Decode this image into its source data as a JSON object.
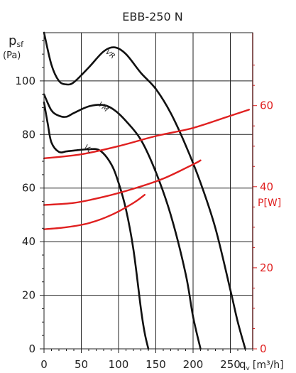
{
  "chart_data": {
    "type": "line",
    "title": "EBB-250 N",
    "ylabel": "p",
    "ylabel_sub": "sf",
    "yunit": "(Pa)",
    "xlabel": "q",
    "xlabel_sub": "v",
    "xunit": "[m³/h]",
    "y2label": "P[W]",
    "xlim": [
      0,
      280
    ],
    "ylim": [
      0,
      118
    ],
    "y2lim": [
      0,
      78
    ],
    "grid": true,
    "x_ticks": [
      0,
      50,
      100,
      150,
      200,
      250
    ],
    "y_ticks": [
      0,
      20,
      40,
      60,
      80,
      100
    ],
    "y2_ticks": [
      0,
      20,
      40,
      60
    ],
    "colors": {
      "pressure": "#111111",
      "power": "#e02020",
      "axis_right": "#e02020",
      "grid": "#222222"
    },
    "pressure_series": [
      {
        "name": "VR",
        "label_at": [
          82,
          110.5
        ],
        "x": [
          0,
          10,
          20,
          30,
          40,
          60,
          80,
          95,
          110,
          130,
          150,
          170,
          190,
          210,
          230,
          250,
          260,
          270
        ],
        "y": [
          118,
          106,
          100,
          98.7,
          99.5,
          105,
          111,
          112.5,
          110,
          103,
          97,
          88,
          76,
          62,
          45,
          22,
          10,
          0
        ]
      },
      {
        "name": "VM",
        "label_at": [
          72,
          91
        ],
        "x": [
          0,
          10,
          20,
          30,
          40,
          60,
          80,
          95,
          110,
          130,
          150,
          170,
          190,
          200,
          210
        ],
        "y": [
          95,
          89,
          87,
          86.6,
          88,
          90.5,
          91,
          89,
          85,
          78,
          66,
          50,
          28,
          12,
          0
        ]
      },
      {
        "name": "VL",
        "label_at": [
          53,
          75
        ],
        "x": [
          0,
          5,
          10,
          20,
          30,
          40,
          60,
          75,
          90,
          100,
          110,
          120,
          130,
          135,
          140
        ],
        "y": [
          92,
          84,
          77,
          73.5,
          73.7,
          74,
          74.5,
          74,
          69,
          62,
          52,
          37,
          15,
          6,
          0
        ]
      }
    ],
    "power_series": [
      {
        "name": "VR",
        "x": [
          0,
          50,
          100,
          150,
          200,
          250,
          275
        ],
        "y": [
          47,
          48,
          50,
          52.5,
          54.5,
          57.5,
          59
        ]
      },
      {
        "name": "VM",
        "x": [
          0,
          40,
          80,
          120,
          160,
          200,
          210
        ],
        "y": [
          35.5,
          36,
          37.5,
          39.5,
          42,
          45.5,
          46.5
        ]
      },
      {
        "name": "VL",
        "x": [
          0,
          30,
          60,
          90,
          120,
          135
        ],
        "y": [
          29.5,
          30,
          31,
          33,
          36,
          38
        ]
      }
    ]
  }
}
